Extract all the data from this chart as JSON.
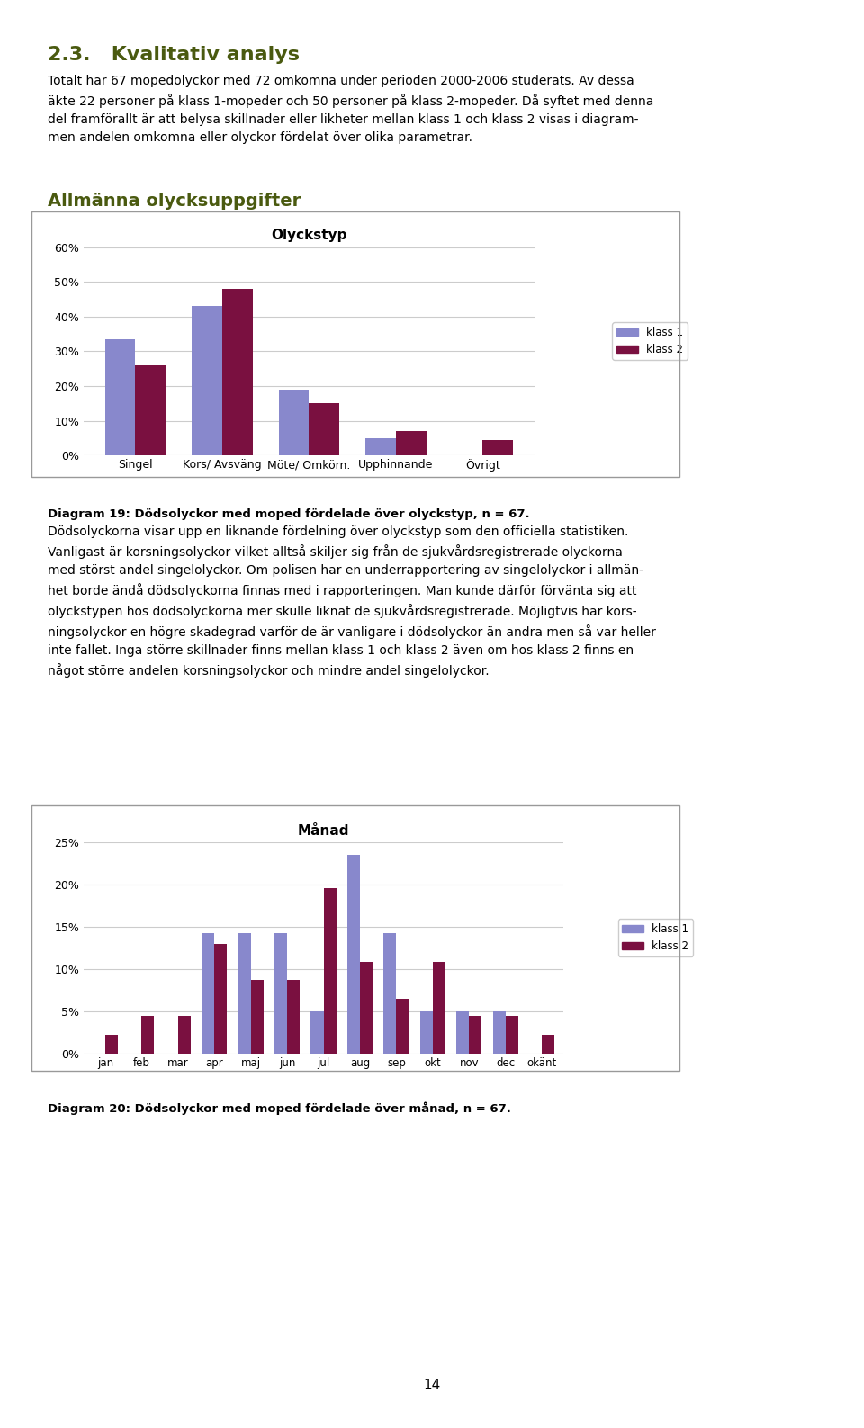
{
  "chart1_title": "Olyckstyp",
  "chart1_categories": [
    "Singel",
    "Kors/ Avsväng",
    "Möte/ Omkörn.",
    "Upphinnande",
    "Övrigt"
  ],
  "chart1_klass1": [
    33.5,
    43.0,
    19.0,
    5.0,
    0.0
  ],
  "chart1_klass2": [
    26.0,
    48.0,
    15.0,
    7.0,
    4.5
  ],
  "chart1_ylim": [
    0,
    60
  ],
  "chart1_yticks": [
    0,
    10,
    20,
    30,
    40,
    50,
    60
  ],
  "chart1_caption": "Diagram 19: Dödsolyckor med moped fördelade över olyckstyp, n = 67.",
  "chart2_title": "Månad",
  "chart2_categories": [
    "jan",
    "feb",
    "mar",
    "apr",
    "maj",
    "jun",
    "jul",
    "aug",
    "sep",
    "okt",
    "nov",
    "dec",
    "okänt"
  ],
  "chart2_klass1": [
    0.0,
    0.0,
    0.0,
    14.3,
    14.3,
    14.3,
    5.0,
    23.5,
    14.3,
    5.0,
    5.0,
    5.0,
    0.0
  ],
  "chart2_klass2": [
    2.2,
    4.5,
    4.5,
    13.0,
    8.7,
    8.7,
    19.6,
    10.9,
    6.5,
    10.9,
    4.5,
    4.5,
    2.2
  ],
  "chart2_ylim": [
    0,
    25
  ],
  "chart2_yticks": [
    0,
    5,
    10,
    15,
    20,
    25
  ],
  "chart2_caption": "Diagram 20: Dödsolyckor med moped fördelade över månad, n = 67.",
  "color_klass1": "#8888cc",
  "color_klass2": "#7a1040",
  "legend_klass1": "klass 1",
  "legend_klass2": "klass 2",
  "background_color": "#ffffff",
  "grid_color": "#cccccc",
  "page_number": "14",
  "title_color": "#4a5a10",
  "section_color": "#4a5a10"
}
